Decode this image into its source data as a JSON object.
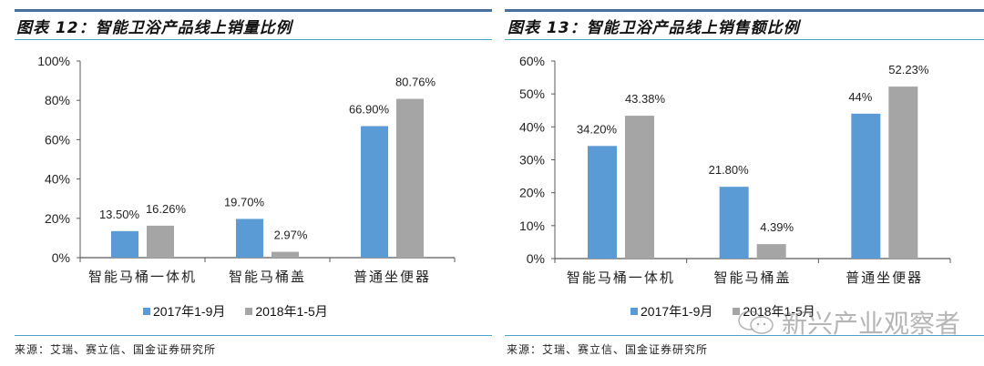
{
  "colors": {
    "series_2017": "#5b9bd5",
    "series_2018": "#a5a5a5",
    "rule_dark": "#4a6e9c",
    "rule_light": "#4ba3c9"
  },
  "left": {
    "title": "图表 12：智能卫浴产品线上销量比例",
    "source": "来源：艾瑞、赛立信、国金证券研究所",
    "legend": [
      "2017年1-9月",
      "2018年1-5月"
    ]
  },
  "right": {
    "title": "图表 13：智能卫浴产品线上销售额比例",
    "source": "来源：艾瑞、赛立信、国金证券研究所",
    "legend": [
      "2017年1-9月",
      "2018年1-5月"
    ]
  },
  "watermark": {
    "text": "新兴产业观察者"
  },
  "chart_data": [
    {
      "type": "bar",
      "title": "图表 12：智能卫浴产品线上销量比例",
      "categories": [
        "智能马桶一体机",
        "智能马桶盖",
        "普通坐便器"
      ],
      "series": [
        {
          "name": "2017年1-9月",
          "values": [
            13.5,
            19.7,
            66.9
          ],
          "labels": [
            "13.50%",
            "19.70%",
            "66.90%"
          ]
        },
        {
          "name": "2018年1-5月",
          "values": [
            16.26,
            2.97,
            80.76
          ],
          "labels": [
            "16.26%",
            "2.97%",
            "80.76%"
          ]
        }
      ],
      "xlabel": "",
      "ylabel": "",
      "ylim": [
        0,
        100
      ],
      "yticks": [
        "0%",
        "20%",
        "40%",
        "60%",
        "80%",
        "100%"
      ],
      "grid": false,
      "legend_position": "bottom"
    },
    {
      "type": "bar",
      "title": "图表 13：智能卫浴产品线上销售额比例",
      "categories": [
        "智能马桶一体机",
        "智能马桶盖",
        "普通坐便器"
      ],
      "series": [
        {
          "name": "2017年1-9月",
          "values": [
            34.2,
            21.8,
            44.0
          ],
          "labels": [
            "34.20%",
            "21.80%",
            "44%"
          ]
        },
        {
          "name": "2018年1-5月",
          "values": [
            43.38,
            4.39,
            52.23
          ],
          "labels": [
            "43.38%",
            "4.39%",
            "52.23%"
          ]
        }
      ],
      "xlabel": "",
      "ylabel": "",
      "ylim": [
        0,
        60
      ],
      "yticks": [
        "0%",
        "10%",
        "20%",
        "30%",
        "40%",
        "50%",
        "60%"
      ],
      "grid": false,
      "legend_position": "bottom"
    }
  ]
}
